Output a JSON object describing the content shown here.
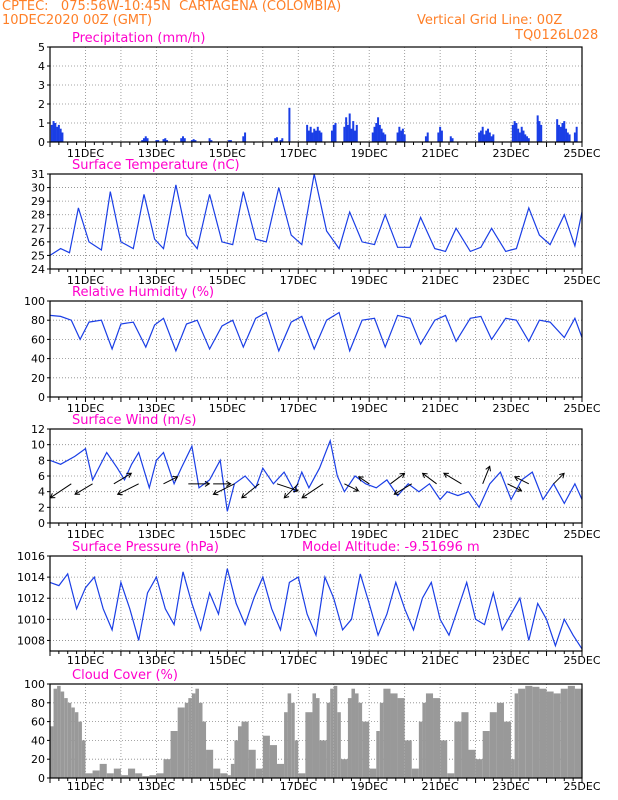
{
  "header": {
    "line1": "CPTEC:   075:56W-10:45N  CARTAGENA (COLOMBIA)",
    "line2": "10DEC2020 00Z (GMT)",
    "grid_note": "Vertical Grid Line: 00Z",
    "code": "TQ0126L028",
    "color": "#ff7f27"
  },
  "colors": {
    "title": "#ff00cc",
    "series": "#1a3ee6",
    "cloud": "#999999",
    "arrow": "#000000"
  },
  "chart_data": [
    {
      "type": "bar",
      "title": "Precipitation (mm/h)",
      "ylim": [
        0,
        5
      ],
      "yticks": [
        0,
        1,
        2,
        3,
        4,
        5
      ],
      "xlim": [
        10,
        25
      ],
      "xticks": [
        "11DEC",
        "13DEC",
        "15DEC",
        "17DEC",
        "19DEC",
        "21DEC",
        "23DEC",
        "25DEC"
      ],
      "x": [
        10.05,
        10.1,
        10.15,
        10.2,
        10.25,
        10.3,
        10.35,
        12.6,
        12.65,
        12.7,
        12.75,
        13.0,
        13.05,
        13.2,
        13.25,
        13.3,
        13.7,
        13.75,
        13.8,
        14.0,
        14.05,
        14.1,
        14.5,
        14.55,
        15.05,
        15.1,
        15.45,
        15.5,
        16.35,
        16.4,
        16.5,
        16.55,
        16.75,
        17.25,
        17.3,
        17.35,
        17.4,
        17.45,
        17.5,
        17.55,
        17.6,
        17.65,
        17.95,
        18.0,
        18.05,
        18.3,
        18.35,
        18.4,
        18.45,
        18.5,
        18.55,
        18.6,
        18.65,
        19.1,
        19.15,
        19.2,
        19.25,
        19.3,
        19.35,
        19.4,
        19.45,
        19.8,
        19.85,
        19.9,
        19.95,
        20.0,
        20.6,
        20.65,
        20.95,
        21.0,
        21.05,
        21.3,
        21.35,
        22.1,
        22.15,
        22.2,
        22.25,
        22.3,
        22.35,
        22.4,
        22.45,
        22.5,
        23.05,
        23.1,
        23.15,
        23.2,
        23.25,
        23.3,
        23.35,
        23.4,
        23.45,
        23.5,
        23.75,
        23.8,
        23.85,
        24.3,
        24.35,
        24.4,
        24.45,
        24.5,
        24.55,
        24.6,
        24.65,
        24.8,
        24.85
      ],
      "values": [
        0.9,
        1.1,
        1.0,
        0.8,
        0.9,
        0.7,
        0.5,
        0.1,
        0.2,
        0.3,
        0.2,
        0.1,
        0.1,
        0.15,
        0.2,
        0.1,
        0.2,
        0.3,
        0.2,
        0.1,
        0.15,
        0.1,
        0.2,
        0.1,
        0.1,
        0.1,
        0.3,
        0.5,
        0.2,
        0.25,
        0.1,
        0.2,
        1.8,
        0.9,
        0.6,
        0.8,
        0.5,
        0.7,
        0.6,
        0.8,
        0.6,
        0.5,
        0.6,
        0.9,
        1.0,
        0.8,
        1.3,
        0.9,
        1.5,
        0.7,
        1.1,
        0.6,
        0.9,
        0.5,
        0.8,
        1.0,
        1.3,
        0.9,
        0.7,
        0.5,
        0.4,
        0.5,
        0.8,
        0.6,
        0.7,
        0.4,
        0.3,
        0.5,
        0.5,
        0.8,
        0.6,
        0.3,
        0.2,
        0.5,
        0.6,
        0.8,
        0.4,
        0.6,
        0.7,
        0.5,
        0.3,
        0.4,
        0.9,
        1.1,
        1.0,
        0.7,
        0.5,
        0.8,
        0.6,
        0.4,
        0.3,
        0.2,
        1.4,
        1.1,
        0.9,
        1.2,
        0.9,
        0.8,
        1.0,
        1.1,
        0.7,
        0.5,
        0.4,
        0.5,
        0.8
      ]
    },
    {
      "type": "line",
      "title": "Surface Temperature (nC)",
      "ylim": [
        24,
        31
      ],
      "yticks": [
        24,
        25,
        26,
        27,
        28,
        29,
        30,
        31
      ],
      "xlim": [
        10,
        25
      ],
      "xticks": [
        "11DEC",
        "13DEC",
        "15DEC",
        "17DEC",
        "19DEC",
        "21DEC",
        "23DEC",
        "25DEC"
      ],
      "x": [
        10.0,
        10.3,
        10.55,
        10.8,
        11.1,
        11.45,
        11.7,
        12.0,
        12.35,
        12.65,
        12.95,
        13.2,
        13.55,
        13.85,
        14.15,
        14.5,
        14.85,
        15.15,
        15.45,
        15.8,
        16.1,
        16.45,
        16.8,
        17.1,
        17.45,
        17.8,
        18.15,
        18.45,
        18.8,
        19.15,
        19.45,
        19.8,
        20.15,
        20.45,
        20.85,
        21.15,
        21.45,
        21.85,
        22.15,
        22.45,
        22.85,
        23.15,
        23.5,
        23.8,
        24.1,
        24.5,
        24.8,
        25.0
      ],
      "series": [
        {
          "values": [
            25.0,
            25.5,
            25.2,
            28.5,
            26.0,
            25.4,
            29.7,
            26.0,
            25.5,
            29.5,
            26.2,
            25.5,
            30.2,
            26.5,
            25.5,
            29.5,
            26.0,
            25.8,
            29.7,
            26.2,
            26.0,
            30.0,
            26.5,
            25.8,
            31.0,
            26.8,
            25.5,
            28.2,
            26.0,
            25.8,
            28.0,
            25.6,
            25.6,
            27.8,
            25.5,
            25.3,
            27.0,
            25.3,
            25.6,
            27.0,
            25.3,
            25.5,
            28.5,
            26.5,
            25.8,
            28.0,
            25.7,
            28.2
          ]
        }
      ]
    },
    {
      "type": "line",
      "title": "Relative Humidity (%)",
      "ylim": [
        0,
        100
      ],
      "yticks": [
        0,
        20,
        40,
        60,
        80,
        100
      ],
      "xlim": [
        10,
        25
      ],
      "xticks": [
        "11DEC",
        "13DEC",
        "15DEC",
        "17DEC",
        "19DEC",
        "21DEC",
        "23DEC",
        "25DEC"
      ],
      "x": [
        10.0,
        10.3,
        10.6,
        10.85,
        11.1,
        11.45,
        11.75,
        12.0,
        12.35,
        12.7,
        12.95,
        13.2,
        13.55,
        13.85,
        14.15,
        14.5,
        14.85,
        15.15,
        15.45,
        15.8,
        16.1,
        16.45,
        16.8,
        17.1,
        17.45,
        17.8,
        18.15,
        18.45,
        18.8,
        19.15,
        19.45,
        19.8,
        20.15,
        20.45,
        20.85,
        21.15,
        21.45,
        21.85,
        22.15,
        22.45,
        22.85,
        23.15,
        23.5,
        23.8,
        24.1,
        24.5,
        24.8,
        25.0
      ],
      "series": [
        {
          "values": [
            85,
            84,
            80,
            60,
            78,
            80,
            50,
            76,
            78,
            52,
            75,
            82,
            48,
            76,
            80,
            50,
            74,
            80,
            52,
            82,
            88,
            48,
            78,
            84,
            50,
            80,
            88,
            48,
            80,
            82,
            52,
            85,
            82,
            55,
            80,
            85,
            58,
            82,
            84,
            60,
            82,
            80,
            58,
            80,
            78,
            62,
            82,
            62
          ]
        }
      ]
    },
    {
      "type": "line",
      "title": "Surface Wind (m/s)",
      "ylim": [
        0,
        12
      ],
      "yticks": [
        0,
        2,
        4,
        6,
        8,
        10,
        12
      ],
      "xlim": [
        10,
        25
      ],
      "xticks": [
        "11DEC",
        "13DEC",
        "15DEC",
        "17DEC",
        "19DEC",
        "21DEC",
        "23DEC",
        "25DEC"
      ],
      "x": [
        10.0,
        10.3,
        10.7,
        11.0,
        11.2,
        11.6,
        11.9,
        12.1,
        12.3,
        12.5,
        12.8,
        13.0,
        13.2,
        13.5,
        13.7,
        14.0,
        14.2,
        14.5,
        14.8,
        15.0,
        15.2,
        15.5,
        15.8,
        16.0,
        16.3,
        16.6,
        16.9,
        17.1,
        17.3,
        17.6,
        17.9,
        18.1,
        18.3,
        18.6,
        18.9,
        19.2,
        19.5,
        19.8,
        20.1,
        20.4,
        20.7,
        21.0,
        21.2,
        21.5,
        21.8,
        22.1,
        22.4,
        22.7,
        23.0,
        23.3,
        23.6,
        23.9,
        24.2,
        24.5,
        24.8,
        25.0
      ],
      "series": [
        {
          "values": [
            8.0,
            7.5,
            8.5,
            9.5,
            5.5,
            9.0,
            7.0,
            5.5,
            7.5,
            9.0,
            4.5,
            8.0,
            9.0,
            5.0,
            7.0,
            9.8,
            4.5,
            5.5,
            8.0,
            1.5,
            5.0,
            6.0,
            4.5,
            7.0,
            5.0,
            6.5,
            4.0,
            6.5,
            4.5,
            7.0,
            10.5,
            6.0,
            4.0,
            6.0,
            5.0,
            4.5,
            5.5,
            3.5,
            5.0,
            4.0,
            5.0,
            3.0,
            4.0,
            3.5,
            4.0,
            2.0,
            5.0,
            6.5,
            3.0,
            5.5,
            6.5,
            3.0,
            5.0,
            2.5,
            5.0,
            3.0
          ]
        }
      ]
    },
    {
      "type": "line",
      "title": "Surface Pressure (hPa)",
      "subtitle": "Model Altitude: -9.51696 m",
      "ylim": [
        1007,
        1016
      ],
      "yticks": [
        1008,
        1010,
        1012,
        1014,
        1016
      ],
      "xlim": [
        10,
        25
      ],
      "xticks": [
        "11DEC",
        "13DEC",
        "15DEC",
        "17DEC",
        "19DEC",
        "21DEC",
        "23DEC",
        "25DEC"
      ],
      "x": [
        10.0,
        10.25,
        10.5,
        10.75,
        11.0,
        11.25,
        11.5,
        11.75,
        12.0,
        12.25,
        12.5,
        12.75,
        13.0,
        13.25,
        13.5,
        13.75,
        14.0,
        14.25,
        14.5,
        14.75,
        15.0,
        15.25,
        15.5,
        15.75,
        16.0,
        16.25,
        16.5,
        16.75,
        17.0,
        17.25,
        17.5,
        17.75,
        18.0,
        18.25,
        18.5,
        18.75,
        19.0,
        19.25,
        19.5,
        19.75,
        20.0,
        20.25,
        20.5,
        20.75,
        21.0,
        21.25,
        21.5,
        21.75,
        22.0,
        22.25,
        22.5,
        22.75,
        23.0,
        23.25,
        23.5,
        23.75,
        24.0,
        24.25,
        24.5,
        24.75,
        25.0
      ],
      "series": [
        {
          "values": [
            1013.5,
            1013.2,
            1014.3,
            1011.0,
            1013.0,
            1014.0,
            1011.0,
            1009.0,
            1013.5,
            1011.0,
            1008.0,
            1012.5,
            1014.0,
            1011.0,
            1009.5,
            1014.5,
            1011.5,
            1009.0,
            1012.5,
            1010.5,
            1014.8,
            1011.5,
            1009.5,
            1012.0,
            1014.0,
            1011.0,
            1009.0,
            1013.5,
            1014.0,
            1010.5,
            1008.5,
            1014.0,
            1012.0,
            1009.0,
            1010.0,
            1014.3,
            1011.5,
            1008.5,
            1010.5,
            1013.5,
            1011.0,
            1009.0,
            1012.0,
            1013.5,
            1010.0,
            1008.5,
            1011.0,
            1013.5,
            1010.0,
            1009.5,
            1012.5,
            1009.0,
            1010.5,
            1012.0,
            1008.0,
            1011.5,
            1010.0,
            1007.5,
            1010.0,
            1008.5,
            1007.2
          ]
        }
      ]
    },
    {
      "type": "area",
      "title": "Cloud Cover (%)",
      "ylim": [
        0,
        100
      ],
      "yticks": [
        0,
        20,
        40,
        60,
        80,
        100
      ],
      "xlim": [
        10,
        25
      ],
      "xticks": [
        "11DEC",
        "13DEC",
        "15DEC",
        "17DEC",
        "19DEC",
        "21DEC",
        "23DEC",
        "25DEC"
      ],
      "x": [
        10.0,
        10.1,
        10.2,
        10.3,
        10.4,
        10.5,
        10.6,
        10.7,
        10.8,
        10.9,
        11.0,
        11.2,
        11.4,
        11.6,
        11.8,
        12.0,
        12.2,
        12.4,
        12.6,
        12.8,
        13.0,
        13.2,
        13.4,
        13.6,
        13.8,
        13.9,
        14.0,
        14.1,
        14.2,
        14.3,
        14.4,
        14.6,
        14.8,
        15.0,
        15.1,
        15.2,
        15.3,
        15.4,
        15.6,
        15.8,
        16.0,
        16.2,
        16.4,
        16.6,
        16.7,
        16.8,
        16.9,
        17.0,
        17.2,
        17.4,
        17.5,
        17.6,
        17.8,
        17.9,
        18.0,
        18.1,
        18.2,
        18.4,
        18.5,
        18.6,
        18.7,
        18.8,
        19.0,
        19.2,
        19.3,
        19.4,
        19.6,
        19.8,
        20.0,
        20.2,
        20.4,
        20.5,
        20.6,
        20.8,
        21.0,
        21.2,
        21.4,
        21.6,
        21.8,
        22.0,
        22.2,
        22.4,
        22.6,
        22.8,
        23.0,
        23.1,
        23.2,
        23.4,
        23.6,
        23.8,
        24.0,
        24.2,
        24.4,
        24.6,
        24.8,
        25.0
      ],
      "values": [
        55,
        95,
        98,
        92,
        85,
        80,
        75,
        70,
        60,
        40,
        5,
        8,
        15,
        5,
        10,
        3,
        10,
        5,
        2,
        3,
        5,
        20,
        50,
        75,
        80,
        85,
        90,
        95,
        80,
        60,
        30,
        10,
        5,
        3,
        15,
        40,
        55,
        60,
        30,
        10,
        45,
        35,
        15,
        70,
        90,
        80,
        40,
        5,
        70,
        90,
        85,
        40,
        80,
        95,
        98,
        70,
        20,
        85,
        95,
        90,
        80,
        60,
        10,
        50,
        80,
        95,
        90,
        85,
        40,
        10,
        60,
        80,
        90,
        85,
        40,
        5,
        60,
        70,
        30,
        20,
        50,
        70,
        80,
        60,
        20,
        90,
        95,
        98,
        97,
        95,
        92,
        90,
        95,
        98,
        95,
        80
      ]
    }
  ],
  "wind_arrows": {
    "x": [
      10.6,
      11.2,
      11.8,
      12.5,
      13.2,
      13.9,
      14.6,
      15.2,
      15.9,
      16.4,
      17.0,
      17.7,
      18.3,
      19.0,
      19.6,
      20.2,
      20.9,
      21.6,
      22.2,
      22.9,
      23.5,
      24.2
    ],
    "u": [
      -3,
      -2.5,
      2.5,
      -3,
      2,
      3,
      2.5,
      -3,
      -2.5,
      3,
      -2,
      -3,
      2,
      -1.5,
      2,
      -2.5,
      -2,
      -2.5,
      1,
      2,
      -2,
      1.5
    ],
    "v": [
      -2,
      -1.5,
      1.5,
      -1.5,
      1,
      0,
      0,
      -1.5,
      -2,
      -1,
      -2,
      -2,
      -1,
      1,
      1.5,
      -1.5,
      1.5,
      1.5,
      2.5,
      -1,
      1,
      1.5
    ]
  }
}
